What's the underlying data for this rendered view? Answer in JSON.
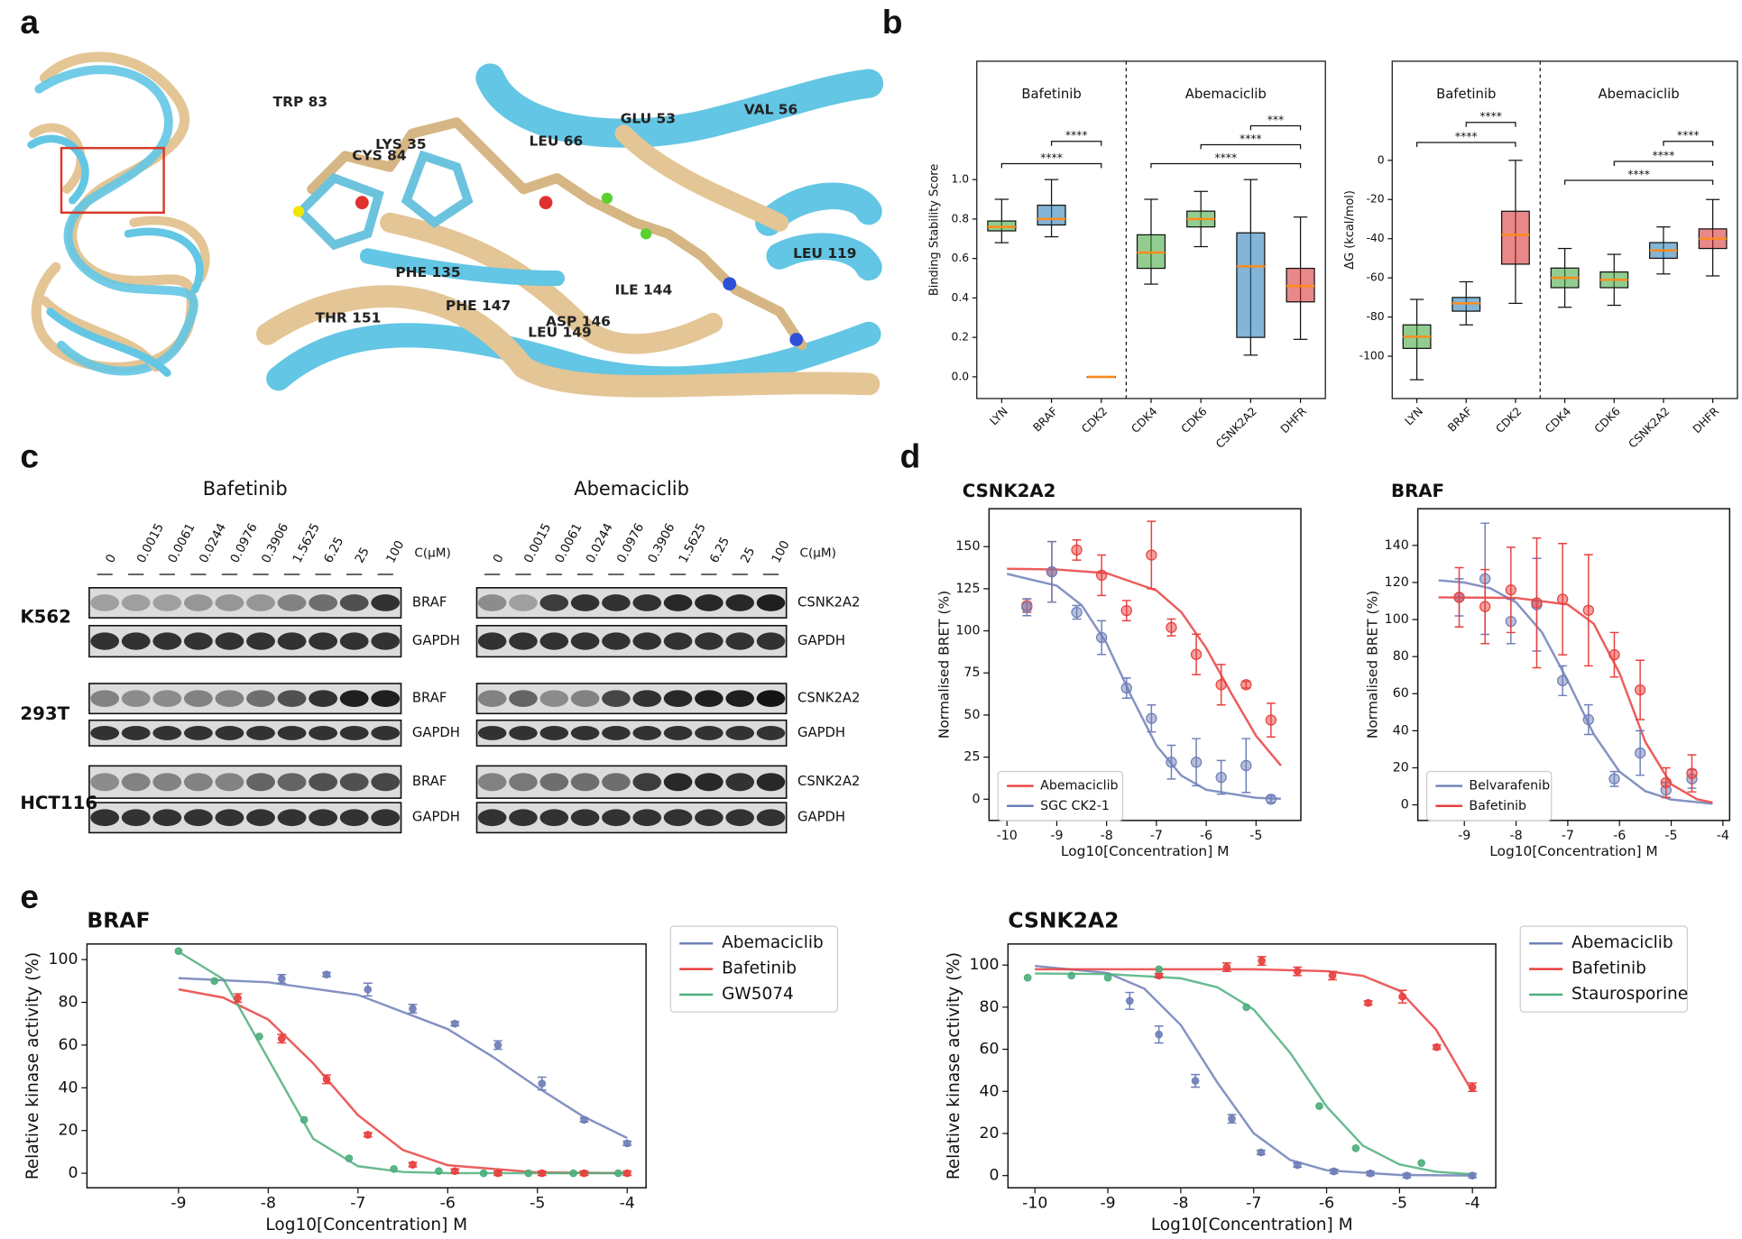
{
  "panel_labels": [
    "a",
    "b",
    "c",
    "d",
    "e"
  ],
  "structure": {
    "residues": [
      "TRP 83",
      "LYS 35",
      "CYS 84",
      "LEU 66",
      "GLU 53",
      "VAL 56",
      "LEU 119",
      "PHE 135",
      "PHE 147",
      "ILE 144",
      "THR 151",
      "ASP 146",
      "LEU 149"
    ]
  },
  "blot": {
    "drugs": [
      "Bafetinib",
      "Abemaciclib"
    ],
    "concentrations": [
      "0",
      "0.0015",
      "0.0061",
      "0.0244",
      "0.0976",
      "0.3906",
      "1.5625",
      "6.25",
      "25",
      "100"
    ],
    "unit": "C(μM)",
    "cell_lines": [
      "K562",
      "293T",
      "HCT116"
    ],
    "targets": [
      "BRAF",
      "CSNK2A2"
    ],
    "loading": "GAPDH"
  },
  "chart_data": [
    {
      "type": "box",
      "ylabel": "Binding Stability Score",
      "groups": [
        "Bafetinib",
        "Abemaciclib"
      ],
      "categories": [
        "LYN",
        "BRAF",
        "CDK2",
        "CDK4",
        "CDK6",
        "CSNK2A2",
        "DHFR"
      ],
      "colors": [
        "#3aa335",
        "#1f77b4",
        "#d62728",
        "#3aa335",
        "#3aa335",
        "#1f77b4",
        "#d62728"
      ],
      "median_color": "#ff8c1a",
      "boxes": [
        {
          "low": 0.68,
          "q1": 0.74,
          "median": 0.76,
          "q3": 0.79,
          "high": 0.9
        },
        {
          "low": 0.71,
          "q1": 0.77,
          "median": 0.8,
          "q3": 0.87,
          "high": 1.0
        },
        {
          "low": 0.0,
          "q1": 0.0,
          "median": 0.0,
          "q3": 0.0,
          "high": 0.0
        },
        {
          "low": 0.47,
          "q1": 0.55,
          "median": 0.63,
          "q3": 0.72,
          "high": 0.9
        },
        {
          "low": 0.66,
          "q1": 0.76,
          "median": 0.8,
          "q3": 0.84,
          "high": 0.94
        },
        {
          "low": 0.11,
          "q1": 0.2,
          "median": 0.56,
          "q3": 0.73,
          "high": 1.0
        },
        {
          "low": 0.19,
          "q1": 0.38,
          "median": 0.46,
          "q3": 0.55,
          "high": 0.81
        }
      ],
      "ylim": [
        -0.11,
        1.6
      ],
      "yticks": [
        {
          "value": 0,
          "label": "0.0"
        },
        0.2,
        0.4,
        0.6,
        0.8,
        {
          "value": 1,
          "label": "1.0"
        }
      ],
      "significance": [
        "****",
        "****",
        "***",
        "****",
        "****"
      ]
    },
    {
      "type": "box",
      "ylabel": "ΔG (kcal/mol)",
      "groups": [
        "Bafetinib",
        "Abemaciclib"
      ],
      "categories": [
        "LYN",
        "BRAF",
        "CDK2",
        "CDK4",
        "CDK6",
        "CSNK2A2",
        "DHFR"
      ],
      "colors": [
        "#3aa335",
        "#1f77b4",
        "#d62728",
        "#3aa335",
        "#3aa335",
        "#1f77b4",
        "#d62728"
      ],
      "median_color": "#ff8c1a",
      "boxes": [
        {
          "low": -112,
          "q1": -96,
          "median": -90,
          "q3": -84,
          "high": -71
        },
        {
          "low": -84,
          "q1": -77,
          "median": -73,
          "q3": -70,
          "high": -62
        },
        {
          "low": -73,
          "q1": -53,
          "median": -38,
          "q3": -26,
          "high": 0
        },
        {
          "low": -75,
          "q1": -65,
          "median": -60,
          "q3": -55,
          "high": -45
        },
        {
          "low": -74,
          "q1": -65,
          "median": -61,
          "q3": -57,
          "high": -48
        },
        {
          "low": -58,
          "q1": -50,
          "median": -46,
          "q3": -42,
          "high": -34
        },
        {
          "low": -59,
          "q1": -45,
          "median": -40,
          "q3": -35,
          "high": -20
        }
      ],
      "ylim": [
        -121.6,
        50.6
      ],
      "yticks": [
        -100,
        -80,
        -60,
        -40,
        -20,
        0
      ],
      "significance": [
        "****",
        "****",
        "****",
        "****",
        "****"
      ]
    },
    {
      "type": "scatter",
      "title": "CSNK2A2",
      "xlabel": "Log10[Concentration] M",
      "ylabel": "Normalised BRET (%)",
      "legend": "lower-left",
      "xlim": [
        -10.36,
        -4.1
      ],
      "xticks": [
        -10,
        -9,
        -8,
        -7,
        -6,
        -5
      ],
      "ylim": [
        -12.6,
        172.5
      ],
      "yticks": [
        0,
        25,
        50,
        75,
        100,
        125,
        150
      ],
      "series": [
        {
          "name": "Abemaciclib",
          "color": "#e8413f",
          "x": [
            -9.6,
            -9.1,
            -8.6,
            -8.1,
            -7.6,
            -7.1,
            -6.7,
            -6.2,
            -5.7,
            -5.2,
            -4.7
          ],
          "values": [
            115,
            135,
            148,
            133,
            112,
            145,
            102,
            86,
            68,
            68,
            47
          ],
          "errors": [
            4,
            18,
            6,
            12,
            6,
            20,
            5,
            12,
            12,
            2,
            10
          ],
          "fit_x": [
            -10,
            -9,
            -8,
            -7,
            -6.5,
            -6,
            -5.5,
            -5,
            -4.5
          ],
          "fit_values": [
            136.9,
            136.4,
            134.2,
            124,
            111,
            89.8,
            63,
            37.7,
            19.9
          ]
        },
        {
          "name": "SGC CK2-1",
          "color": "#6f7fb8",
          "x": [
            -9.6,
            -9.1,
            -8.6,
            -8.1,
            -7.6,
            -7.1,
            -6.7,
            -6.2,
            -5.7,
            -5.2,
            -4.7
          ],
          "values": [
            114,
            135,
            111,
            96,
            66,
            48,
            22,
            22,
            13,
            20,
            0
          ],
          "errors": [
            5,
            18,
            4,
            10,
            6,
            8,
            10,
            14,
            10,
            16,
            2
          ],
          "fit_x": [
            -10,
            -9,
            -8.5,
            -8,
            -7.5,
            -7,
            -6.5,
            -6,
            -5,
            -4.5
          ],
          "fit_values": [
            133.8,
            126.8,
            115.2,
            92.6,
            60.9,
            31.8,
            14,
            5.6,
            0.8,
            0.3
          ]
        }
      ]
    },
    {
      "type": "scatter",
      "title": "BRAF",
      "xlabel": "Log10[Concentration] M",
      "ylabel": "Normalised BRET (%)",
      "legend": "lower-left",
      "xlim": [
        -9.9,
        -3.87
      ],
      "xticks": [
        -9,
        -8,
        -7,
        -6,
        -5,
        -4
      ],
      "ylim": [
        -8.4,
        159.8
      ],
      "yticks": [
        0,
        20,
        40,
        60,
        80,
        100,
        120,
        140
      ],
      "series": [
        {
          "name": "Belvarafenib",
          "color": "#6f7fb8",
          "x": [
            -9.1,
            -8.6,
            -8.1,
            -7.6,
            -7.1,
            -6.6,
            -6.1,
            -5.6,
            -5.1,
            -4.6
          ],
          "values": [
            112,
            122,
            99,
            108,
            67,
            46,
            14,
            28,
            8,
            14
          ],
          "errors": [
            10,
            30,
            12,
            25,
            8,
            8,
            4,
            12,
            4,
            5
          ],
          "fit_x": [
            -9.5,
            -9,
            -8.5,
            -8,
            -7.5,
            -7,
            -6.5,
            -6,
            -5.5,
            -5,
            -4.2
          ],
          "fit_values": [
            121.2,
            120,
            116.9,
            109.3,
            93.2,
            67,
            38.2,
            17.9,
            7.4,
            2.9,
            0.6
          ]
        },
        {
          "name": "Bafetinib",
          "color": "#e8413f",
          "x": [
            -9.1,
            -8.6,
            -8.1,
            -7.6,
            -7.1,
            -6.6,
            -6.1,
            -5.6,
            -5.1,
            -4.6
          ],
          "values": [
            112,
            107,
            116,
            109,
            111,
            105,
            81,
            62,
            12,
            17
          ],
          "errors": [
            16,
            20,
            23,
            35,
            30,
            30,
            12,
            16,
            8,
            10
          ],
          "fit_x": [
            -9.5,
            -8,
            -7,
            -6.5,
            -6,
            -5.5,
            -5,
            -4.5,
            -4.2
          ],
          "fit_values": [
            112,
            111.7,
            108.1,
            97.8,
            71.1,
            34,
            11.1,
            3,
            1.3
          ]
        }
      ]
    },
    {
      "type": "scatter",
      "title": "BRAF",
      "xlabel": "Log10[Concentration] M",
      "ylabel": "Relative kinase activity (%)",
      "legend": "outside",
      "xlim": [
        -10.02,
        -3.79
      ],
      "xticks": [
        -9,
        -8,
        -7,
        -6,
        -5,
        -4
      ],
      "ylim": [
        -6.8,
        107.3
      ],
      "yticks": [
        0,
        20,
        40,
        60,
        80,
        100
      ],
      "series": [
        {
          "name": "Abemaciclib",
          "color": "#6f7fb8",
          "x": [
            -7.85,
            -7.35,
            -6.89,
            -6.39,
            -5.92,
            -5.44,
            -4.95,
            -4.48,
            -4.0
          ],
          "values": [
            91,
            93,
            86,
            77,
            70,
            60,
            42,
            25,
            14
          ],
          "errors": [
            2,
            1,
            3,
            2,
            1,
            2,
            3,
            1,
            1
          ],
          "fit_x": [
            -9,
            -8,
            -7,
            -6,
            -5.5,
            -5,
            -4.5,
            -4
          ],
          "fit_values": [
            91.3,
            89.4,
            83.5,
            67.5,
            54.6,
            40.2,
            26.8,
            16.5
          ]
        },
        {
          "name": "Bafetinib",
          "color": "#e8413f",
          "x": [
            -8.34,
            -7.85,
            -7.35,
            -6.89,
            -6.39,
            -5.92,
            -5.44,
            -4.95,
            -4.48,
            -4.0
          ],
          "values": [
            82,
            63,
            44,
            18,
            4,
            1,
            0,
            0,
            0,
            0
          ],
          "errors": [
            2,
            2,
            2,
            1,
            1,
            1,
            1,
            1,
            1,
            1
          ],
          "fit_x": [
            -9,
            -8.5,
            -8,
            -7.5,
            -7,
            -6.5,
            -6,
            -5,
            -4
          ],
          "fit_values": [
            86.1,
            82.2,
            71.9,
            51.5,
            27.2,
            10.9,
            3.8,
            0.4,
            0.04
          ]
        },
        {
          "name": "GW5074",
          "color": "#4daf7c",
          "x": [
            -9,
            -8.6,
            -8.1,
            -7.6,
            -7.1,
            -6.6,
            -6.1,
            -5.6,
            -5.1,
            -4.6,
            -4.1
          ],
          "values": [
            104,
            90,
            64,
            25,
            7,
            2,
            1,
            0,
            0,
            0,
            0
          ],
          "fit_x": [
            -9,
            -8.5,
            -8,
            -7.5,
            -7,
            -6.5,
            -6,
            -4
          ],
          "fit_values": [
            103.7,
            90.8,
            53.5,
            16.2,
            3.3,
            0.6,
            0.1,
            0
          ]
        }
      ]
    },
    {
      "type": "scatter",
      "title": "CSNK2A2",
      "xlabel": "Log10[Concentration] M",
      "ylabel": "Relative kinase activity (%)",
      "legend": "outside",
      "xlim": [
        -10.37,
        -3.68
      ],
      "xticks": [
        -10,
        -9,
        -8,
        -7,
        -6,
        -5,
        -4
      ],
      "ylim": [
        -5.8,
        110
      ],
      "yticks": [
        0,
        20,
        40,
        60,
        80,
        100
      ],
      "series": [
        {
          "name": "Abemaciclib",
          "color": "#6f7fb8",
          "x": [
            -8.7,
            -8.3,
            -7.8,
            -7.3,
            -6.9,
            -6.4,
            -5.9,
            -5.4,
            -4.9,
            -4.0
          ],
          "values": [
            83,
            67,
            45,
            27,
            11,
            5,
            2,
            1,
            0,
            0
          ],
          "errors": [
            4,
            4,
            3,
            2,
            1,
            1,
            1,
            1,
            1,
            1
          ],
          "fit_x": [
            -10,
            -9,
            -8.5,
            -8,
            -7.5,
            -7,
            -6.5,
            -6,
            -5,
            -4
          ],
          "fit_values": [
            99.6,
            96.2,
            88.8,
            71.5,
            44.3,
            20.1,
            7.4,
            2.5,
            0.3,
            0
          ]
        },
        {
          "name": "Bafetinib",
          "color": "#e8413f",
          "x": [
            -8.3,
            -7.37,
            -6.89,
            -6.4,
            -5.92,
            -5.43,
            -4.96,
            -4.49,
            -4.0
          ],
          "values": [
            95,
            99,
            102,
            97,
            95,
            82,
            85,
            61,
            42
          ],
          "errors": [
            1,
            2,
            2,
            2,
            2,
            1,
            3,
            1,
            2
          ],
          "fit_x": [
            -10,
            -7,
            -6,
            -5.5,
            -5,
            -4.5,
            -4
          ],
          "fit_values": [
            98,
            98,
            97.1,
            94.9,
            87.8,
            69.4,
            39.8
          ]
        },
        {
          "name": "Staurosporine",
          "color": "#4daf7c",
          "x": [
            -10.1,
            -9.5,
            -9.0,
            -8.3,
            -7.1,
            -6.1,
            -5.6,
            -4.7
          ],
          "values": [
            94,
            95,
            94,
            98,
            80,
            33,
            13,
            6
          ],
          "fit_x": [
            -10,
            -9,
            -8,
            -7.5,
            -7,
            -6.5,
            -6,
            -5.5,
            -5,
            -4.5,
            -4
          ],
          "fit_values": [
            96,
            95.7,
            93.7,
            89.5,
            78.9,
            58.3,
            32.8,
            14.2,
            5.3,
            1.8,
            0.6
          ]
        }
      ]
    }
  ]
}
